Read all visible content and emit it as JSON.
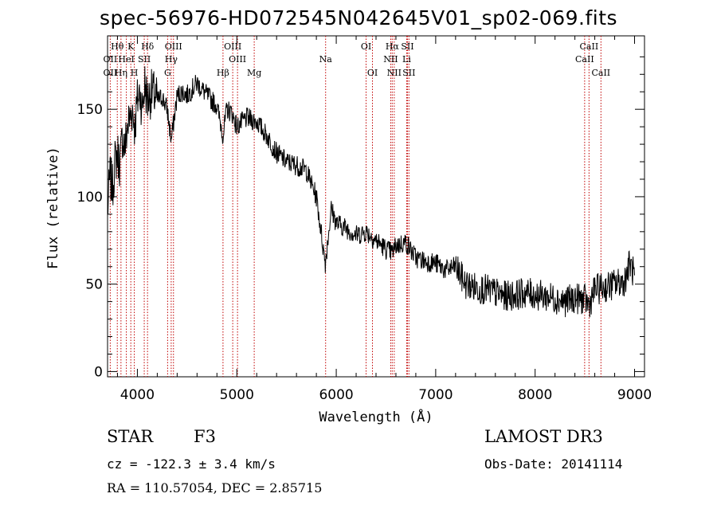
{
  "title": "spec-56976-HD072545N042645V01_sp02-069.fits",
  "info": {
    "class": "STAR",
    "subclass": "F3",
    "survey": "LAMOST DR3",
    "cz": "cz = -122.3 ± 3.4 km/s",
    "obs_date": "Obs-Date: 20141114",
    "radec": "RA = 110.57054, DEC =   2.85715"
  },
  "chart_data": {
    "type": "line",
    "xlabel": "Wavelength (Å)",
    "ylabel": "Flux (relative)",
    "xlim": [
      3700,
      9100
    ],
    "ylim": [
      -3,
      192
    ],
    "x_ticks": [
      4000,
      5000,
      6000,
      7000,
      8000,
      9000
    ],
    "y_ticks": [
      0,
      50,
      100,
      150
    ],
    "grid": false,
    "series": [
      {
        "color": "#000000",
        "x": [
          3700,
          3725,
          3750,
          3775,
          3800,
          3825,
          3850,
          3875,
          3900,
          3925,
          3950,
          3975,
          4000,
          4025,
          4050,
          4075,
          4100,
          4150,
          4200,
          4250,
          4300,
          4340,
          4400,
          4450,
          4500,
          4600,
          4700,
          4800,
          4861,
          4900,
          4950,
          5000,
          5100,
          5200,
          5300,
          5400,
          5500,
          5600,
          5700,
          5800,
          5890,
          5950,
          6000,
          6100,
          6200,
          6300,
          6400,
          6500,
          6563,
          6600,
          6700,
          6800,
          6900,
          7000,
          7100,
          7200,
          7300,
          7400,
          7500,
          7600,
          7700,
          7800,
          7900,
          8000,
          8100,
          8200,
          8300,
          8400,
          8500,
          8542,
          8600,
          8700,
          8800,
          8900,
          8950,
          9000
        ],
        "y": [
          92,
          112,
          105,
          120,
          125,
          118,
          135,
          128,
          140,
          145,
          150,
          140,
          155,
          160,
          150,
          165,
          155,
          160,
          155,
          157,
          150,
          132,
          158,
          160,
          158,
          165,
          158,
          152,
          135,
          150,
          148,
          140,
          145,
          143,
          135,
          125,
          120,
          118,
          115,
          100,
          62,
          93,
          85,
          82,
          78,
          80,
          75,
          70,
          68,
          72,
          74,
          65,
          63,
          62,
          58,
          60,
          50,
          48,
          47,
          45,
          43,
          44,
          45,
          44,
          43,
          42,
          40,
          42,
          41,
          38,
          47,
          48,
          50,
          52,
          62,
          55
        ]
      }
    ],
    "line_ids": [
      {
        "label": "Hθ",
        "x": 3798,
        "row": 1
      },
      {
        "label": "OII",
        "x": 3727,
        "row": 2
      },
      {
        "label": "OII",
        "x": 3727,
        "row": 3
      },
      {
        "label": "K",
        "x": 3934,
        "row": 1
      },
      {
        "label": "HeI",
        "x": 3889,
        "row": 2
      },
      {
        "label": "Hη",
        "x": 3835,
        "row": 3
      },
      {
        "label": "H",
        "x": 3969,
        "row": 3
      },
      {
        "label": "SII",
        "x": 4069,
        "row": 2
      },
      {
        "label": "Hδ",
        "x": 4102,
        "row": 1
      },
      {
        "label": "OIII",
        "x": 4363,
        "row": 1
      },
      {
        "label": "Hγ",
        "x": 4340,
        "row": 2
      },
      {
        "label": "G",
        "x": 4304,
        "row": 3
      },
      {
        "label": "Hβ",
        "x": 4861,
        "row": 3
      },
      {
        "label": "OIII",
        "x": 4959,
        "row": 1
      },
      {
        "label": "OIII",
        "x": 5007,
        "row": 2
      },
      {
        "label": "Mg",
        "x": 5175,
        "row": 3
      },
      {
        "label": "Na",
        "x": 5893,
        "row": 2
      },
      {
        "label": "OI",
        "x": 6300,
        "row": 1
      },
      {
        "label": "OI",
        "x": 6364,
        "row": 3
      },
      {
        "label": "Hα",
        "x": 6563,
        "row": 1
      },
      {
        "label": "NII",
        "x": 6548,
        "row": 2
      },
      {
        "label": "NII",
        "x": 6583,
        "row": 3
      },
      {
        "label": "SII",
        "x": 6716,
        "row": 1
      },
      {
        "label": "Li",
        "x": 6708,
        "row": 2
      },
      {
        "label": "SII",
        "x": 6731,
        "row": 3
      },
      {
        "label": "CaII",
        "x": 8542,
        "row": 1
      },
      {
        "label": "CaII",
        "x": 8498,
        "row": 2
      },
      {
        "label": "CaII",
        "x": 8662,
        "row": 3
      }
    ]
  }
}
